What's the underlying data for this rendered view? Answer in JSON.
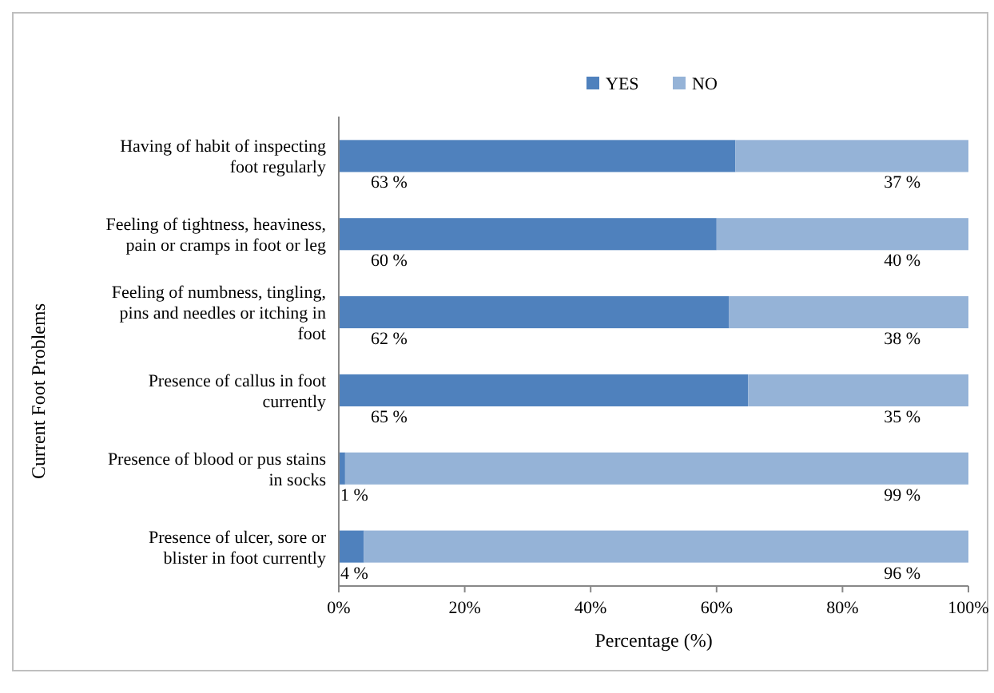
{
  "chart_data": {
    "type": "bar",
    "orientation": "horizontal",
    "stacked": true,
    "xlabel": "Percentage (%)",
    "ylabel": "Current Foot Problems",
    "categories": [
      "Having of habit of inspecting foot regularly",
      "Feeling of tightness, heaviness, pain or cramps in foot or leg",
      "Feeling of numbness, tingling, pins and needles or itching in foot",
      "Presence of callus in foot currently",
      "Presence of blood or pus stains in socks",
      "Presence of ulcer, sore or blister in foot currently"
    ],
    "series": [
      {
        "name": "YES",
        "color": "#4f81bd",
        "values": [
          63,
          60,
          62,
          65,
          1,
          4
        ],
        "value_labels": [
          "63 %",
          "60 %",
          "62 %",
          "65 %",
          "1 %",
          "4 %"
        ]
      },
      {
        "name": "NO",
        "color": "#95b3d7",
        "values": [
          37,
          40,
          38,
          35,
          99,
          96
        ],
        "value_labels": [
          "37 %",
          "40 %",
          "38 %",
          "35 %",
          "99 %",
          "96 %"
        ]
      }
    ],
    "xlim": [
      0,
      100
    ],
    "xticks": [
      {
        "value": 0,
        "label": "0%"
      },
      {
        "value": 20,
        "label": "20%"
      },
      {
        "value": 40,
        "label": "40%"
      },
      {
        "value": 60,
        "label": "60%"
      },
      {
        "value": 80,
        "label": "80%"
      },
      {
        "value": 100,
        "label": "100%"
      }
    ],
    "grid": false,
    "legend": "top"
  }
}
